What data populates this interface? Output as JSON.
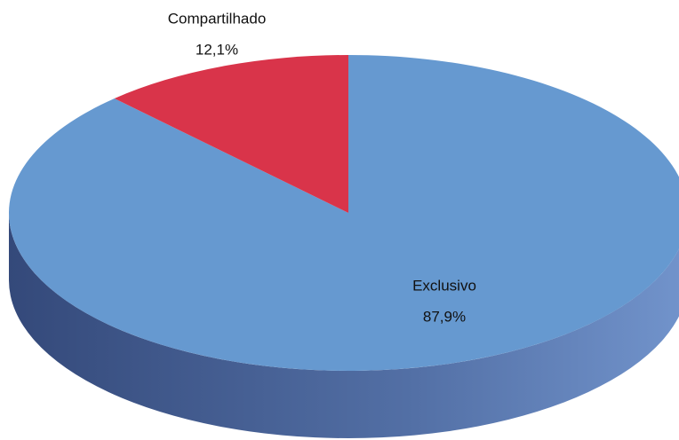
{
  "chart_data": {
    "type": "pie",
    "categories": [
      "Exclusivo",
      "Compartilhado"
    ],
    "values": [
      87.9,
      12.1
    ],
    "value_labels": [
      "87,9%",
      "12,1%"
    ],
    "colors": [
      "#6699d0",
      "#d9344a"
    ],
    "three_d": true
  }
}
